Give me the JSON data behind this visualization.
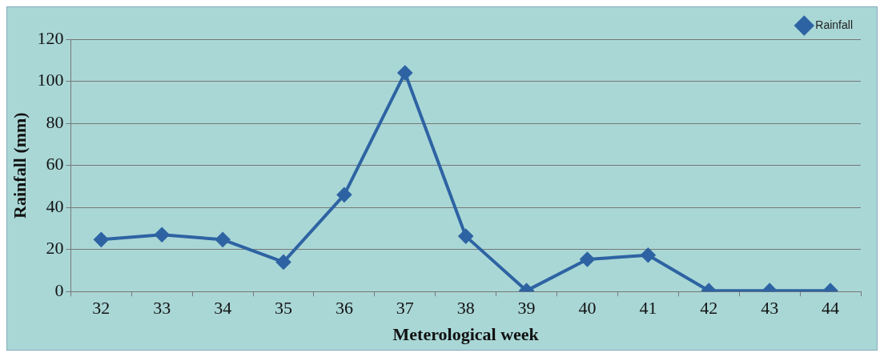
{
  "chart_data": {
    "type": "line",
    "xlabel": "Meterological week",
    "ylabel": "Rainfall (mm)",
    "categories": [
      "32",
      "33",
      "34",
      "35",
      "36",
      "37",
      "38",
      "39",
      "40",
      "41",
      "42",
      "43",
      "44"
    ],
    "series": [
      {
        "name": "Rainfall",
        "color": "#2e63a3",
        "values": [
          24.7,
          27,
          24.7,
          14,
          46,
          104,
          26.3,
          0.4,
          15.3,
          17.3,
          0.4,
          0.4,
          0.4
        ]
      }
    ],
    "ylim": [
      0,
      120
    ],
    "yticks": [
      0,
      20,
      40,
      60,
      80,
      100,
      120
    ],
    "grid": "y",
    "legend": "top right",
    "marker": "diamond",
    "line_style": "solid"
  }
}
